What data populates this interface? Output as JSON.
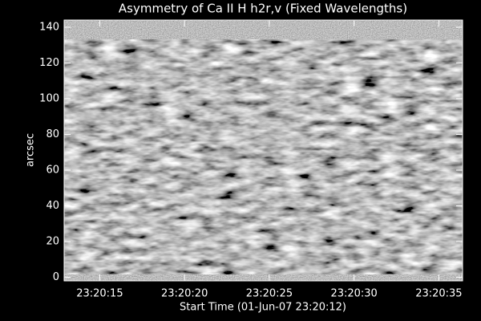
{
  "chart_data": {
    "type": "image",
    "title": "Asymmetry of Ca II H h2r,v (Fixed Wavelengths)",
    "xlabel": "Start Time (01-Jun-07 23:20:12)",
    "ylabel": "arcsec",
    "xlim": [
      0.9,
      24.4
    ],
    "xticks": [
      {
        "value": 3,
        "label": "23:20:15"
      },
      {
        "value": 8,
        "label": "23:20:20"
      },
      {
        "value": 13,
        "label": "23:20:25"
      },
      {
        "value": 18,
        "label": "23:20:30"
      },
      {
        "value": 23,
        "label": "23:20:35"
      }
    ],
    "ylim": [
      -2,
      144
    ],
    "yticks": [
      0,
      20,
      40,
      60,
      80,
      100,
      120,
      140
    ]
  }
}
